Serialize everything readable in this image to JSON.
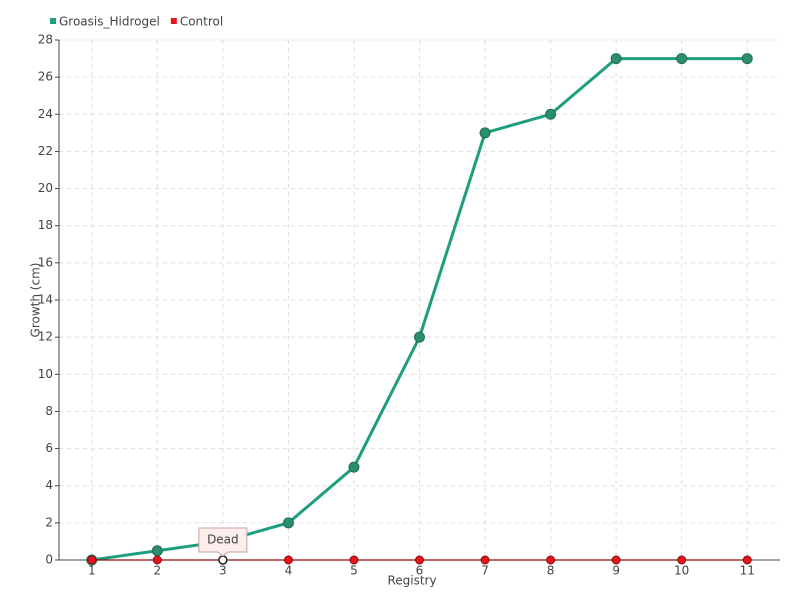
{
  "chart_data": {
    "type": "line",
    "x": [
      1,
      2,
      3,
      4,
      5,
      6,
      7,
      8,
      9,
      10,
      11
    ],
    "xlim": [
      0.5,
      11.5
    ],
    "xticks": [
      1,
      2,
      3,
      4,
      5,
      6,
      7,
      8,
      9,
      10,
      11
    ],
    "ylim": [
      0,
      28
    ],
    "yticks": [
      0,
      2,
      4,
      6,
      8,
      10,
      12,
      14,
      16,
      18,
      20,
      22,
      24,
      26,
      28
    ],
    "xlabel": "Registry",
    "ylabel": "Growth (cm)",
    "grid": true,
    "legend": "top-left",
    "series": [
      {
        "name": "Groasis_Hidrogel",
        "color": "#1e9e7e",
        "values": [
          0,
          0.5,
          1,
          2,
          5,
          12,
          23,
          24,
          27,
          27,
          27
        ]
      },
      {
        "name": "Control",
        "color": "#e8141c",
        "values": [
          0,
          0,
          0,
          0,
          0,
          0,
          0,
          0,
          0,
          0,
          0
        ]
      }
    ],
    "annotation": {
      "text": "Dead",
      "x": 3,
      "y": 0
    }
  }
}
